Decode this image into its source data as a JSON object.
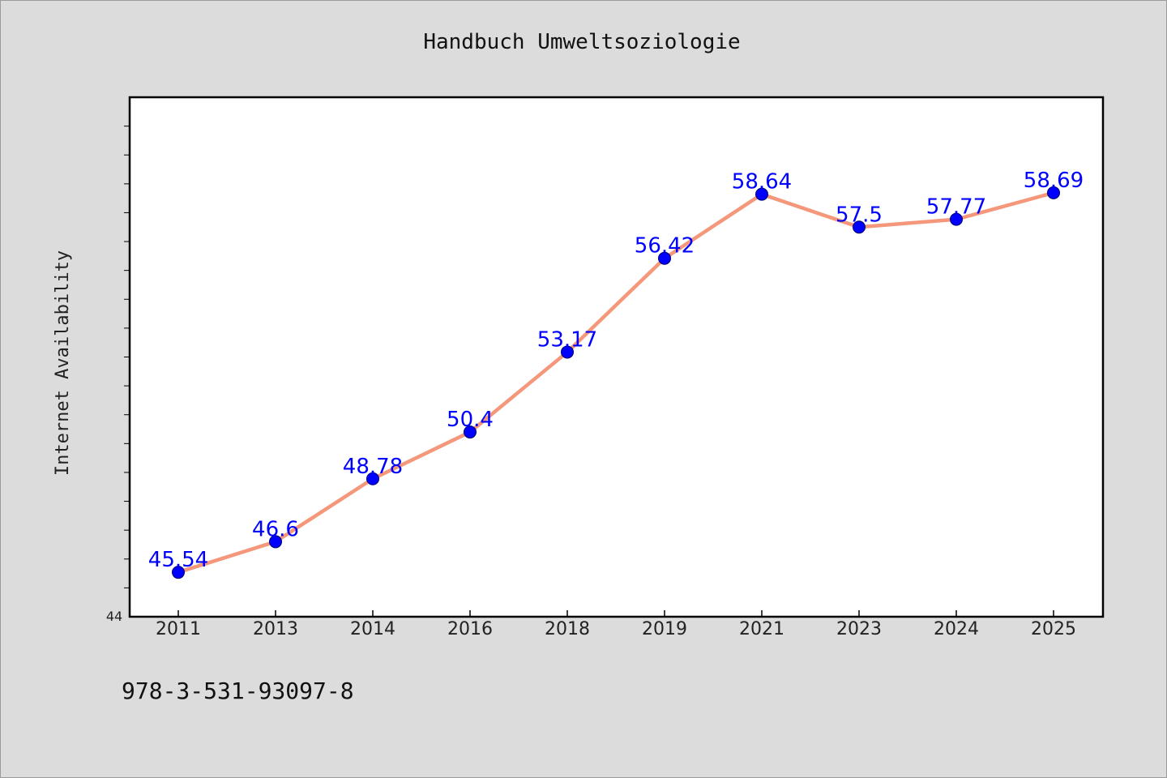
{
  "chart_data": {
    "type": "line",
    "title": "Handbuch Umweltsoziologie",
    "xlabel": "",
    "ylabel": "Internet Availability",
    "categories": [
      "2011",
      "2013",
      "2014",
      "2016",
      "2018",
      "2019",
      "2021",
      "2023",
      "2024",
      "2025"
    ],
    "series": [
      {
        "values": [
          45.54,
          46.6,
          48.78,
          50.4,
          53.17,
          56.42,
          58.64,
          57.5,
          57.77,
          58.69
        ],
        "labels": [
          "45.54",
          "46.6",
          "48.78",
          "50.4",
          "53.17",
          "56.42",
          "58.64",
          "57.5",
          "57.77",
          "58.69"
        ]
      }
    ],
    "ylim": [
      44,
      62
    ],
    "y_min_label": "44",
    "grid": false,
    "line_color": "#f4977a",
    "marker_color": "#0000ff",
    "label_color": "#0000ff",
    "background_color": "#dcdcdc",
    "plot_background_color": "#ffffff"
  },
  "footer": {
    "isbn": "978-3-531-93097-8"
  }
}
